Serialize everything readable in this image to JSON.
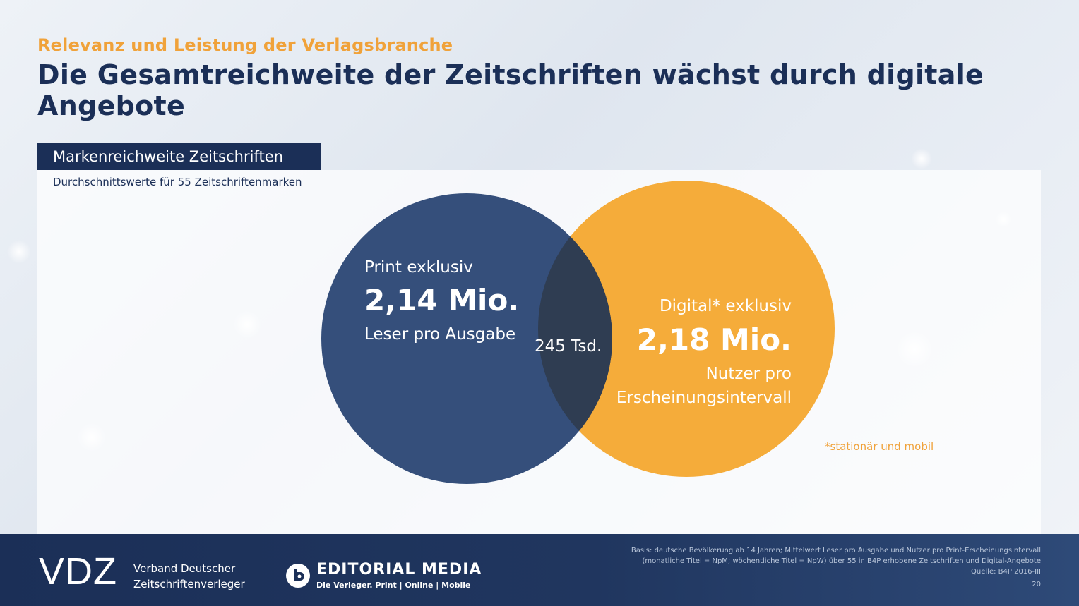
{
  "header": {
    "kicker": "Relevanz und Leistung der Verlagsbranche",
    "headline": "Die Gesamtreichweite der Zeitschriften wächst durch digitale Angebote"
  },
  "section": {
    "title": "Markenreichweite Zeitschriften",
    "subtitle": "Durchschnittswerte für 55 Zeitschriftenmarken"
  },
  "venn": {
    "print": {
      "label": "Print exklusiv",
      "value": "2,14 Mio.",
      "unit": "Leser pro Ausgabe",
      "color": "#354f7b"
    },
    "overlap": {
      "value": "245 Tsd.",
      "color": "#2f3d52"
    },
    "digital": {
      "label": "Digital* exklusiv",
      "value": "2,18 Mio.",
      "unit_line1": "Nutzer pro",
      "unit_line2": "Erscheinungsintervall",
      "color": "#f5ac3a"
    },
    "footnote": "*stationär und mobil"
  },
  "footer": {
    "vdz_logo": "VDZ",
    "vdz_name_line1": "Verband Deutscher",
    "vdz_name_line2": "Zeitschriftenverleger",
    "editorial_title": "EDITORIAL MEDIA",
    "editorial_tagline": "Die Verleger. Print | Online | Mobile",
    "source_line1": "Basis: deutsche Bevölkerung ab 14 Jahren; Mittelwert Leser pro Ausgabe und Nutzer pro Print-Erscheinungsintervall",
    "source_line2": "(monatliche Titel = NpM; wöchentliche Titel = NpW) über 55 in B4P erhobene Zeitschriften und Digital-Angebote",
    "source_line3": "Quelle: B4P 2016-III",
    "page_number": "20"
  }
}
